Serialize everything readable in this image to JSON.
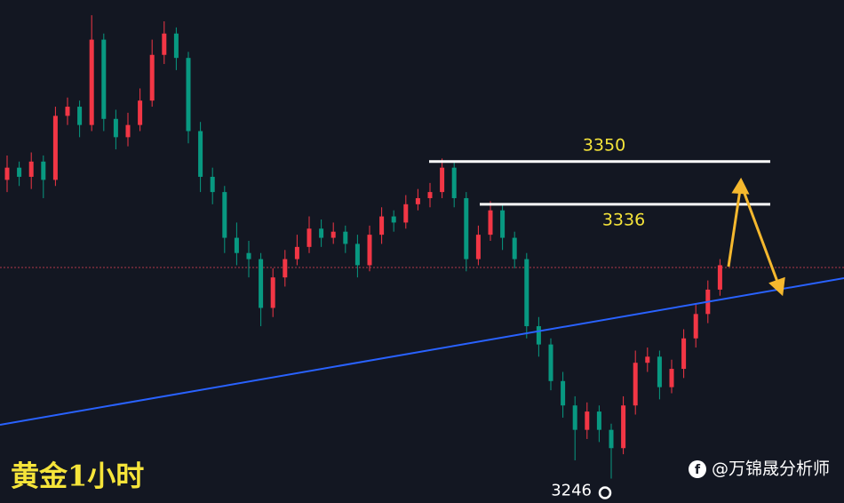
{
  "chart_data": {
    "type": "candlestick",
    "title": "黄金1小时",
    "watermark": "@万锦晟分析师",
    "ylim": [
      3238,
      3403
    ],
    "open": [
      3344,
      3348,
      3345,
      3350,
      3344,
      3365,
      3368,
      3362,
      3390,
      3364,
      3358,
      3362,
      3370,
      3385,
      3392,
      3384,
      3360,
      3345,
      3340,
      3325,
      3320,
      3318,
      3302,
      3312,
      3318,
      3322,
      3328,
      3325,
      3327,
      3323,
      3316,
      3326,
      3332,
      3330,
      3336,
      3338,
      3340,
      3348,
      3338,
      3318,
      3326,
      3334,
      3325,
      3318,
      3296,
      3290,
      3278,
      3270,
      3262,
      3268,
      3262,
      3256,
      3270,
      3284,
      3286,
      3276,
      3282,
      3292,
      3300,
      3308
    ],
    "high": [
      3352,
      3350,
      3353,
      3352,
      3368,
      3371,
      3370,
      3398,
      3392,
      3367,
      3366,
      3374,
      3390,
      3396,
      3394,
      3386,
      3363,
      3348,
      3342,
      3330,
      3324,
      3320,
      3315,
      3321,
      3326,
      3332,
      3331,
      3330,
      3329,
      3326,
      3329,
      3335,
      3334,
      3339,
      3341,
      3343,
      3351,
      3350,
      3340,
      3329,
      3337,
      3336,
      3327,
      3320,
      3299,
      3292,
      3281,
      3273,
      3271,
      3270,
      3264,
      3273,
      3288,
      3289,
      3288,
      3285,
      3295,
      3303,
      3311,
      3318
    ],
    "low": [
      3340,
      3342,
      3341,
      3338,
      3342,
      3362,
      3358,
      3360,
      3360,
      3354,
      3355,
      3360,
      3368,
      3382,
      3380,
      3356,
      3340,
      3336,
      3320,
      3316,
      3312,
      3296,
      3299,
      3309,
      3316,
      3320,
      3322,
      3323,
      3320,
      3312,
      3314,
      3323,
      3327,
      3328,
      3334,
      3335,
      3338,
      3335,
      3314,
      3316,
      3324,
      3321,
      3315,
      3292,
      3286,
      3275,
      3266,
      3252,
      3259,
      3258,
      3246,
      3254,
      3267,
      3281,
      3272,
      3274,
      3279,
      3289,
      3297,
      3306
    ],
    "close": [
      3348,
      3345,
      3350,
      3344,
      3365,
      3368,
      3362,
      3390,
      3364,
      3358,
      3362,
      3370,
      3385,
      3392,
      3384,
      3360,
      3345,
      3340,
      3325,
      3320,
      3318,
      3302,
      3312,
      3318,
      3322,
      3328,
      3325,
      3327,
      3323,
      3316,
      3326,
      3332,
      3330,
      3336,
      3338,
      3340,
      3348,
      3338,
      3318,
      3326,
      3334,
      3325,
      3318,
      3296,
      3290,
      3278,
      3270,
      3262,
      3268,
      3262,
      3256,
      3270,
      3284,
      3286,
      3276,
      3282,
      3292,
      3300,
      3308,
      3316
    ],
    "up_color": "#f23645",
    "down_color": "#089981",
    "levels": [
      3350,
      3336
    ],
    "low_marker": 3246
  }
}
